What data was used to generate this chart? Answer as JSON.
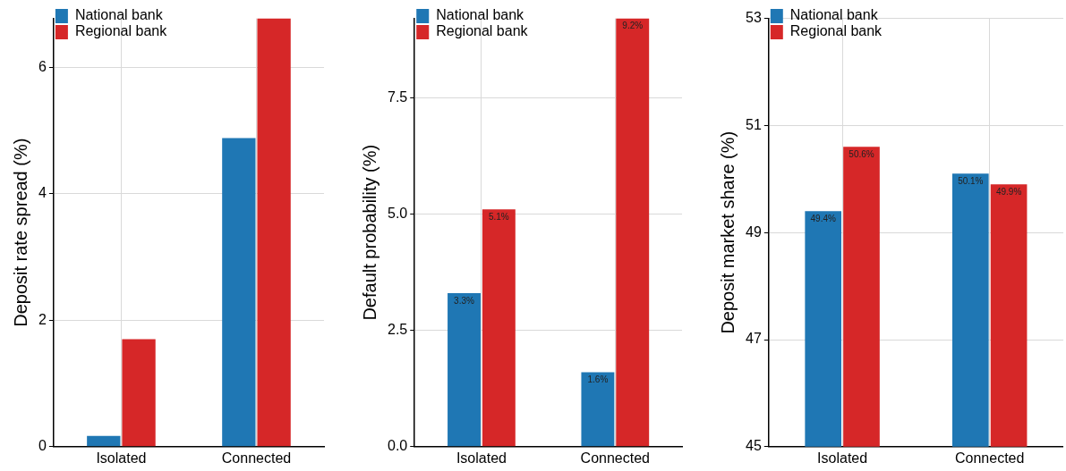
{
  "chart_data": [
    {
      "type": "bar",
      "ylabel": "Deposit rate spread (%)",
      "categories": [
        "Isolated",
        "Connected"
      ],
      "series": [
        {
          "name": "National bank",
          "color": "#1f77b4",
          "values": [
            0.17,
            4.88
          ]
        },
        {
          "name": "Regional bank",
          "color": "#d62728",
          "values": [
            1.7,
            6.77
          ]
        }
      ],
      "ylim": [
        0,
        6.77
      ],
      "yticks": [
        0,
        2,
        4,
        6
      ],
      "grid": true,
      "legend": "top left"
    },
    {
      "type": "bar",
      "ylabel": "Default probability (%)",
      "categories": [
        "Isolated",
        "Connected"
      ],
      "series": [
        {
          "name": "National bank",
          "color": "#1f77b4",
          "values": [
            3.3,
            1.6
          ],
          "value_labels": [
            "3.3%",
            "1.6%"
          ]
        },
        {
          "name": "Regional bank",
          "color": "#d62728",
          "values": [
            5.1,
            9.2
          ],
          "value_labels": [
            "5.1%",
            "9.2%"
          ]
        }
      ],
      "ylim": [
        0,
        9.2
      ],
      "yticks": [
        {
          "value": 0,
          "label": "0.0"
        },
        2.5,
        {
          "value": 5,
          "label": "5.0"
        },
        7.5
      ],
      "grid": true,
      "legend": "top left"
    },
    {
      "type": "bar",
      "ylabel": "Deposit market share (%)",
      "categories": [
        "Isolated",
        "Connected"
      ],
      "series": [
        {
          "name": "National bank",
          "color": "#1f77b4",
          "values": [
            49.4,
            50.1
          ],
          "value_labels": [
            "49.4%",
            "50.1%"
          ]
        },
        {
          "name": "Regional bank",
          "color": "#d62728",
          "values": [
            50.6,
            49.9
          ],
          "value_labels": [
            "50.6%",
            "49.9%"
          ]
        }
      ],
      "ylim": [
        45,
        53
      ],
      "yticks": [
        45,
        47,
        49,
        51,
        53
      ],
      "grid": true,
      "legend": "top left"
    }
  ]
}
